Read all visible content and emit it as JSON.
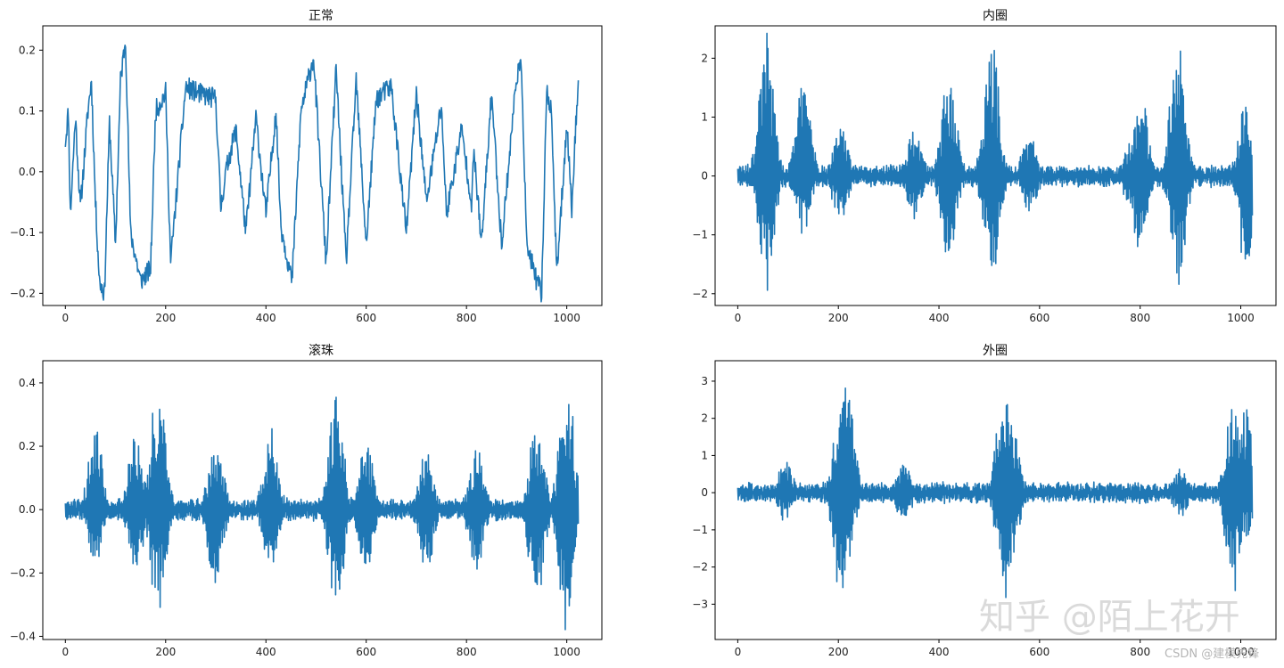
{
  "chart_data": [
    {
      "type": "line",
      "title": "正常",
      "xlim": [
        -45,
        1070
      ],
      "ylim": [
        -0.22,
        0.24
      ],
      "xticks": [
        0,
        200,
        400,
        600,
        800,
        1000
      ],
      "yticks": [
        -0.2,
        -0.1,
        0.0,
        0.1,
        0.2
      ],
      "ytick_labels": [
        "−0.2",
        "−0.1",
        "0.0",
        "0.1",
        "0.2"
      ],
      "xtick_labels": [
        "0",
        "200",
        "400",
        "600",
        "800",
        "1000"
      ],
      "color": "#1f77b4",
      "series": [
        {
          "values_min": -0.2,
          "values_max": 0.22,
          "n_points": 1024,
          "keypoints": [
            [
              0,
              0.05
            ],
            [
              6,
              0.1
            ],
            [
              10,
              -0.07
            ],
            [
              20,
              0.09
            ],
            [
              30,
              -0.06
            ],
            [
              45,
              0.1
            ],
            [
              52,
              0.15
            ],
            [
              60,
              -0.05
            ],
            [
              68,
              -0.18
            ],
            [
              78,
              -0.2
            ],
            [
              88,
              0.08
            ],
            [
              100,
              -0.12
            ],
            [
              110,
              0.15
            ],
            [
              120,
              0.22
            ],
            [
              130,
              -0.1
            ],
            [
              150,
              -0.18
            ],
            [
              170,
              -0.16
            ],
            [
              180,
              0.1
            ],
            [
              200,
              0.13
            ],
            [
              210,
              -0.15
            ],
            [
              240,
              0.14
            ],
            [
              262,
              0.13
            ],
            [
              300,
              0.12
            ],
            [
              310,
              -0.06
            ],
            [
              320,
              0.0
            ],
            [
              340,
              0.07
            ],
            [
              360,
              -0.1
            ],
            [
              380,
              0.09
            ],
            [
              400,
              -0.07
            ],
            [
              420,
              0.1
            ],
            [
              430,
              -0.09
            ],
            [
              452,
              -0.18
            ],
            [
              470,
              0.1
            ],
            [
              495,
              0.19
            ],
            [
              520,
              -0.15
            ],
            [
              540,
              0.17
            ],
            [
              560,
              -0.15
            ],
            [
              580,
              0.15
            ],
            [
              600,
              -0.12
            ],
            [
              620,
              0.12
            ],
            [
              650,
              0.14
            ],
            [
              680,
              -0.1
            ],
            [
              700,
              0.13
            ],
            [
              720,
              -0.05
            ],
            [
              750,
              0.11
            ],
            [
              760,
              -0.07
            ],
            [
              790,
              0.07
            ],
            [
              810,
              -0.05
            ],
            [
              815,
              0.03
            ],
            [
              830,
              -0.12
            ],
            [
              850,
              0.13
            ],
            [
              870,
              -0.12
            ],
            [
              900,
              0.16
            ],
            [
              910,
              0.17
            ],
            [
              920,
              -0.12
            ],
            [
              940,
              -0.18
            ],
            [
              950,
              -0.2
            ],
            [
              960,
              0.14
            ],
            [
              970,
              0.09
            ],
            [
              980,
              -0.17
            ],
            [
              1000,
              0.08
            ],
            [
              1010,
              -0.06
            ],
            [
              1023,
              0.16
            ]
          ]
        }
      ]
    },
    {
      "type": "line",
      "title": "内圈",
      "xlim": [
        -45,
        1070
      ],
      "ylim": [
        -2.2,
        2.55
      ],
      "xticks": [
        0,
        200,
        400,
        600,
        800,
        1000
      ],
      "yticks": [
        -2,
        -1,
        0,
        1,
        2
      ],
      "ytick_labels": [
        "−2",
        "−1",
        "0",
        "1",
        "2"
      ],
      "xtick_labels": [
        "0",
        "200",
        "400",
        "600",
        "800",
        "1000"
      ],
      "color": "#1f77b4",
      "series": [
        {
          "values_min": -2.05,
          "values_max": 2.45,
          "n_points": 1024,
          "bursts": [
            [
              57,
              2.45,
              -2.0
            ],
            [
              130,
              1.65,
              -1.1
            ],
            [
              205,
              0.9,
              -0.8
            ],
            [
              350,
              0.8,
              -0.7
            ],
            [
              420,
              1.85,
              -1.6
            ],
            [
              505,
              2.3,
              -1.9
            ],
            [
              580,
              0.7,
              -0.6
            ],
            [
              780,
              0.6,
              -0.5
            ],
            [
              800,
              1.45,
              -1.3
            ],
            [
              875,
              2.4,
              -2.0
            ],
            [
              1010,
              1.2,
              -1.6
            ]
          ]
        }
      ]
    },
    {
      "type": "line",
      "title": "滚珠",
      "xlim": [
        -45,
        1070
      ],
      "ylim": [
        -0.41,
        0.47
      ],
      "xticks": [
        0,
        200,
        400,
        600,
        800,
        1000
      ],
      "yticks": [
        -0.4,
        -0.2,
        0.0,
        0.2,
        0.4
      ],
      "ytick_labels": [
        "−0.4",
        "−0.2",
        "0.0",
        "0.2",
        "0.4"
      ],
      "xtick_labels": [
        "0",
        "200",
        "400",
        "600",
        "800",
        "1000"
      ],
      "color": "#1f77b4",
      "series": [
        {
          "values_min": -0.39,
          "values_max": 0.45,
          "n_points": 1024,
          "bursts": [
            [
              60,
              0.26,
              -0.17
            ],
            [
              140,
              0.25,
              -0.22
            ],
            [
              185,
              0.42,
              -0.36
            ],
            [
              300,
              0.22,
              -0.25
            ],
            [
              410,
              0.25,
              -0.2
            ],
            [
              540,
              0.37,
              -0.32
            ],
            [
              600,
              0.22,
              -0.2
            ],
            [
              720,
              0.2,
              -0.2
            ],
            [
              820,
              0.2,
              -0.2
            ],
            [
              940,
              0.28,
              -0.3
            ],
            [
              1000,
              0.45,
              -0.39
            ]
          ]
        }
      ]
    },
    {
      "type": "line",
      "title": "外圈",
      "xlim": [
        -45,
        1070
      ],
      "ylim": [
        -3.95,
        3.55
      ],
      "xticks": [
        0,
        200,
        400,
        600,
        800,
        1000
      ],
      "yticks": [
        -3,
        -2,
        -1,
        0,
        1,
        2,
        3
      ],
      "ytick_labels": [
        "−3",
        "−2",
        "−1",
        "0",
        "1",
        "2",
        "3"
      ],
      "xtick_labels": [
        "0",
        "200",
        "400",
        "600",
        "800",
        "1000"
      ],
      "color": "#1f77b4",
      "series": [
        {
          "values_min": -3.3,
          "values_max": 3.35,
          "n_points": 1024,
          "bursts": [
            [
              95,
              0.9,
              -0.75
            ],
            [
              205,
              2.4,
              -3.3
            ],
            [
              215,
              3.35,
              -2.6
            ],
            [
              330,
              0.8,
              -0.8
            ],
            [
              530,
              3.3,
              -3.1
            ],
            [
              545,
              1.8,
              -1.8
            ],
            [
              880,
              0.75,
              -0.6
            ],
            [
              985,
              2.6,
              -2.8
            ],
            [
              1010,
              2.3,
              -1.2
            ]
          ]
        }
      ]
    }
  ],
  "watermarks": {
    "zhihu": "知乎 @陌上花开",
    "csdn": "CSDN @建模先锋"
  }
}
